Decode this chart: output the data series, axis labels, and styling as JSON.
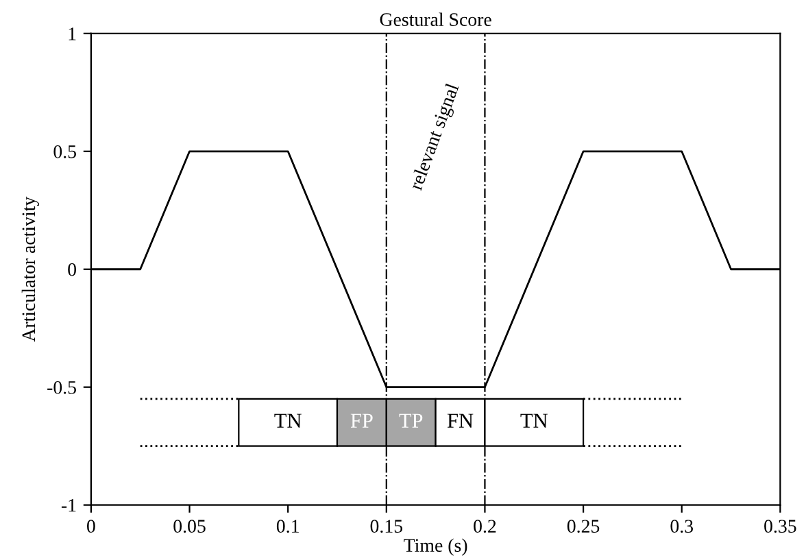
{
  "chart_data": {
    "type": "line",
    "title": "Gestural Score",
    "xlabel": "Time (s)",
    "ylabel": "Articulator activity",
    "xlim": [
      0,
      0.35
    ],
    "ylim": [
      -1,
      1
    ],
    "xticks": [
      0,
      0.05,
      0.1,
      0.15,
      0.2,
      0.25,
      0.3,
      0.35
    ],
    "yticks": [
      -1,
      -0.5,
      0,
      0.5,
      1
    ],
    "grid": false,
    "marker": "none",
    "series": [
      {
        "color": "#000000",
        "line_style": "solid",
        "x": [
          0,
          0.025,
          0.05,
          0.1,
          0.15,
          0.2,
          0.25,
          0.3,
          0.325,
          0.35
        ],
        "values": [
          0,
          0,
          0.5,
          0.5,
          -0.5,
          -0.5,
          0.5,
          0.5,
          0,
          0
        ]
      },
      {
        "type": "line",
        "color": "#000000",
        "line_style": "dotted",
        "x": [
          0.025,
          0.075,
          0.1625,
          0.25,
          0.3
        ],
        "values": [
          -0.55,
          -0.55,
          null,
          -0.55,
          -0.55
        ]
      },
      {
        "type": "line",
        "color": "#000000",
        "line_style": "dotted",
        "x": [
          0.025,
          0.075,
          0.1625,
          0.25,
          0.3
        ],
        "values": [
          -0.75,
          -0.75,
          null,
          -0.75,
          -0.75
        ]
      },
      {
        "type": "histogram",
        "bins": [
          0.075,
          0.125,
          0.15,
          0.175,
          0.2,
          0.25
        ],
        "values": [
          0.2,
          0.2,
          0.2,
          0.2,
          0.2
        ],
        "base": [
          -0.75,
          -0.75,
          -0.75,
          -0.75,
          -0.75
        ],
        "colors": [
          "#ffffff",
          "#a6a6a6",
          "#a6a6a6",
          "#ffffff",
          "#ffffff"
        ],
        "value_labels": [
          "TN",
          "FP",
          "TP",
          "FN",
          "TN"
        ]
      }
    ],
    "ref_lines": [
      {
        "axis": "x",
        "value": 0.15,
        "line_style": "dashdot",
        "color": "#000000"
      },
      {
        "axis": "x",
        "value": 0.2,
        "line_style": "dashdot",
        "color": "#000000"
      }
    ],
    "annotations": [
      "relevant signal"
    ]
  }
}
